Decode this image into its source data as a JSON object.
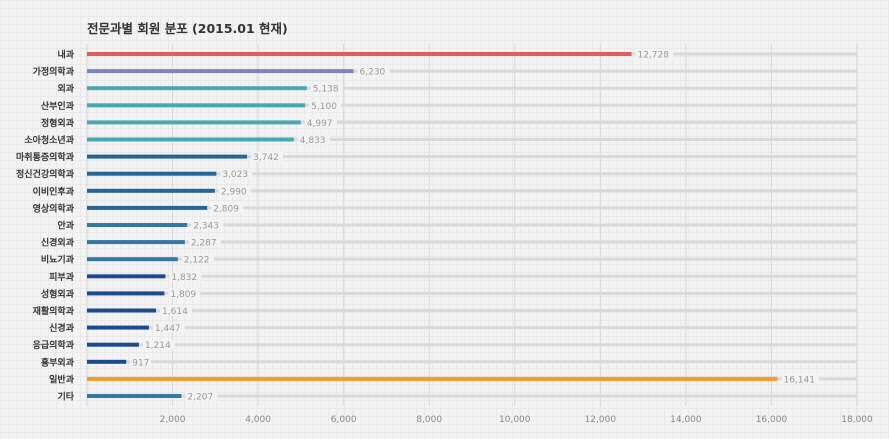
{
  "chart_data": {
    "type": "bar",
    "orientation": "horizontal",
    "title": "전문과별 회원 분포 (2015.01 현재)",
    "xlabel": "",
    "ylabel": "",
    "xlim": [
      0,
      18000
    ],
    "xticks": [
      2000,
      4000,
      6000,
      8000,
      10000,
      12000,
      14000,
      16000,
      18000
    ],
    "xtick_labels": [
      "2,000",
      "4,000",
      "6,000",
      "8,000",
      "10,000",
      "12,000",
      "14,000",
      "16,000",
      "18,000"
    ],
    "grid": true,
    "categories": [
      "내과",
      "가정의학과",
      "외과",
      "산부인과",
      "정형외과",
      "소아청소년과",
      "마취통증의학과",
      "정신건강의학과",
      "이비인후과",
      "영상의학과",
      "안과",
      "신경외과",
      "비뇨기과",
      "피부과",
      "성형외과",
      "재활의학과",
      "신경과",
      "응급의학과",
      "흉부외과",
      "일반과",
      "기타"
    ],
    "values": [
      12728,
      6230,
      5138,
      5100,
      4997,
      4833,
      3742,
      3023,
      2990,
      2809,
      2343,
      2287,
      2122,
      1832,
      1809,
      1614,
      1447,
      1214,
      917,
      16141,
      2207
    ],
    "value_labels": [
      "12,728",
      "6,230",
      "5,138",
      "5,100",
      "4,997",
      "4,833",
      "3,742",
      "3,023",
      "2,990",
      "2,809",
      "2,343",
      "2,287",
      "2,122",
      "1,832",
      "1,809",
      "1,614",
      "1,447",
      "1,214",
      "917",
      "16,141",
      "2,207"
    ],
    "colors": [
      "#d9605c",
      "#7d86b9",
      "#4aa7b4",
      "#4aa7b4",
      "#4aa7b4",
      "#4aa7b4",
      "#266597",
      "#266597",
      "#266597",
      "#266597",
      "#3478a6",
      "#3478a6",
      "#3478a6",
      "#1c4b92",
      "#1c4b92",
      "#1c4b92",
      "#1c4b92",
      "#1c4b92",
      "#1c4b92",
      "#f59a2c",
      "#3478a6"
    ]
  }
}
